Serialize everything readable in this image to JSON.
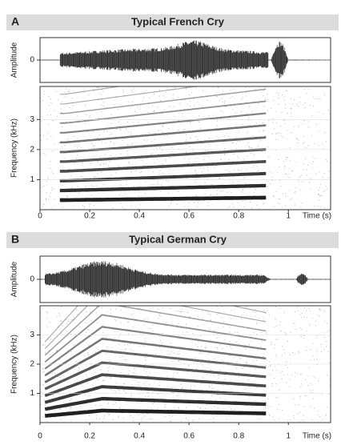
{
  "chart_data": [
    {
      "type": "spectrogram",
      "panel_label": "A",
      "title": "Typical French Cry",
      "amplitude_label": "Amplitude",
      "amplitude_ticks": [
        0
      ],
      "y_label": "Frequency (kHz)",
      "ylim": [
        0,
        4.1
      ],
      "yticks": [
        1,
        2,
        3
      ],
      "x_label": "Time (s)",
      "xlim": [
        0,
        1.17
      ],
      "xticks": [
        0,
        0.2,
        0.4,
        0.6,
        0.8,
        1
      ]
    },
    {
      "type": "spectrogram",
      "panel_label": "B",
      "title": "Typical German Cry",
      "amplitude_label": "Amplitude",
      "amplitude_ticks": [
        0
      ],
      "y_label": "Frequency (kHz)",
      "ylim": [
        0,
        4
      ],
      "yticks": [
        1,
        2,
        3
      ],
      "x_label": "Time (s)",
      "xlim": [
        0,
        1.17
      ],
      "xticks": [
        0,
        0.2,
        0.4,
        0.6,
        0.8,
        1
      ]
    }
  ]
}
